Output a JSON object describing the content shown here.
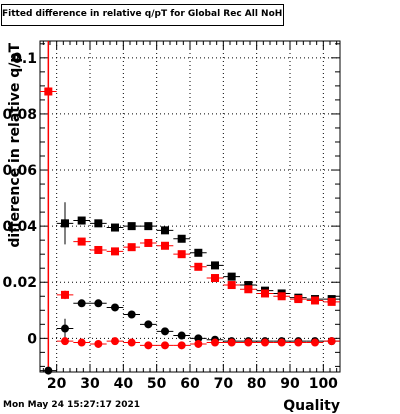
{
  "title": "Fitted difference in relative q/pT for Global Rec All NoHits",
  "timestamp": "Mon May 24 15:27:17 2021",
  "chart_data": {
    "type": "scatter",
    "title": "Fitted difference in relative q/pT for Global Rec All NoHits",
    "xlabel": "Quality",
    "ylabel": "difference in relative q/pT",
    "xlim": [
      15,
      105
    ],
    "ylim": [
      -0.012,
      0.106
    ],
    "grid": true,
    "x_ticks": [
      20,
      30,
      40,
      50,
      60,
      70,
      80,
      90,
      100
    ],
    "x_tick_labels": [
      "20",
      "30",
      "40",
      "50",
      "60",
      "70",
      "80",
      "90",
      "100"
    ],
    "y_ticks": [
      0,
      0.02,
      0.04,
      0.06,
      0.08,
      0.1
    ],
    "y_tick_labels": [
      "0",
      "0.02",
      "0.04",
      "0.06",
      "0.08",
      "0.1"
    ],
    "series": [
      {
        "color": "#000000",
        "marker": "square",
        "x": [
          22.5,
          27.5,
          32.5,
          37.5,
          42.5,
          47.5,
          52.5,
          57.5,
          62.5,
          67.5,
          72.5,
          77.5,
          82.5,
          87.5,
          92.5,
          97.5,
          102.5
        ],
        "y": [
          0.041,
          0.042,
          0.041,
          0.0395,
          0.04,
          0.04,
          0.0385,
          0.0355,
          0.0305,
          0.026,
          0.022,
          0.019,
          0.017,
          0.016,
          0.0145,
          0.014,
          0.014
        ],
        "yerr": [
          0.0075,
          0.001,
          0.0008,
          0.0008,
          0.0008,
          0.0008,
          0.0008,
          0.0008,
          0.0008,
          0.0008,
          0.0008,
          0.0008,
          0.0008,
          0.0008,
          0.0008,
          0.0008,
          0.0008
        ]
      },
      {
        "color": "#ff0000",
        "marker": "square",
        "x": [
          17.5,
          22.5,
          27.5,
          32.5,
          37.5,
          42.5,
          47.5,
          52.5,
          57.5,
          62.5,
          67.5,
          72.5,
          77.5,
          82.5,
          87.5,
          92.5,
          97.5,
          102.5
        ],
        "y": [
          0.088,
          0.0155,
          0.0345,
          0.0315,
          0.031,
          0.0325,
          0.034,
          0.033,
          0.03,
          0.0255,
          0.0215,
          0.019,
          0.0175,
          0.016,
          0.015,
          0.014,
          0.0135,
          0.013
        ],
        "yerr": [
          0.001,
          0.0015,
          0.001,
          0.0008,
          0.0008,
          0.0008,
          0.0008,
          0.0008,
          0.0008,
          0.0008,
          0.0008,
          0.0008,
          0.0008,
          0.0008,
          0.0008,
          0.0008,
          0.0008,
          0.0008
        ]
      },
      {
        "color": "#000000",
        "marker": "circle",
        "x": [
          17.5,
          22.5,
          27.5,
          32.5,
          37.5,
          42.5,
          47.5,
          52.5,
          57.5,
          62.5,
          67.5,
          72.5,
          77.5,
          82.5,
          87.5,
          92.5,
          97.5,
          102.5
        ],
        "y": [
          -0.0115,
          0.0035,
          0.0125,
          0.0125,
          0.011,
          0.0085,
          0.005,
          0.0025,
          0.001,
          0.0,
          -0.0005,
          -0.001,
          -0.001,
          -0.001,
          -0.001,
          -0.001,
          -0.001,
          -0.001
        ],
        "yerr": [
          0.0005,
          0.0035,
          0.001,
          0.0008,
          0.0008,
          0.0006,
          0.0006,
          0.0005,
          0.0005,
          0.0005,
          0.0005,
          0.0005,
          0.0005,
          0.0005,
          0.0005,
          0.0005,
          0.0005,
          0.0005
        ]
      },
      {
        "color": "#ff0000",
        "marker": "circle",
        "x": [
          22.5,
          27.5,
          32.5,
          37.5,
          42.5,
          47.5,
          52.5,
          57.5,
          62.5,
          67.5,
          72.5,
          77.5,
          82.5,
          87.5,
          92.5,
          97.5,
          102.5
        ],
        "y": [
          -0.001,
          -0.0015,
          -0.002,
          -0.001,
          -0.0015,
          -0.0025,
          -0.0025,
          -0.0025,
          -0.002,
          -0.0015,
          -0.0015,
          -0.0015,
          -0.0015,
          -0.0015,
          -0.0015,
          -0.0015,
          -0.001
        ],
        "yerr": [
          0.0006,
          0.0005,
          0.0005,
          0.0005,
          0.0005,
          0.0005,
          0.0005,
          0.0005,
          0.0005,
          0.0005,
          0.0005,
          0.0005,
          0.0005,
          0.0005,
          0.0005,
          0.0005,
          0.0005
        ]
      }
    ],
    "reference_line": {
      "color": "#ff0000",
      "x": 17.5
    }
  }
}
